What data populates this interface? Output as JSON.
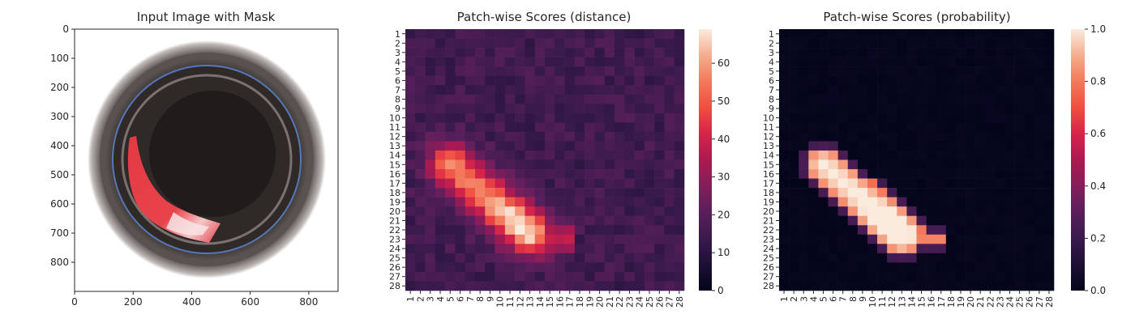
{
  "chart_data": [
    {
      "type": "image",
      "title": "Input Image with Mask",
      "xlabel": "",
      "ylabel": "",
      "xlim": [
        0,
        900
      ],
      "ylim": [
        900,
        0
      ],
      "xticks": [
        0,
        200,
        400,
        600,
        800
      ],
      "yticks": [
        0,
        100,
        200,
        300,
        400,
        500,
        600,
        700,
        800
      ],
      "content": "photograph of a dark circular container with a red mask overlay on the lower-left rim",
      "mask_color": "#e8323c"
    },
    {
      "type": "heatmap",
      "title": "Patch-wise Scores (distance)",
      "xlabel": "",
      "ylabel": "",
      "x_ticklabels": [
        "1",
        "2",
        "3",
        "4",
        "5",
        "6",
        "7",
        "8",
        "9",
        "10",
        "11",
        "12",
        "13",
        "14",
        "15",
        "16",
        "17",
        "18",
        "19",
        "20",
        "21",
        "22",
        "23",
        "24",
        "25",
        "26",
        "27",
        "28"
      ],
      "y_ticklabels": [
        "1",
        "2",
        "3",
        "4",
        "5",
        "6",
        "7",
        "8",
        "9",
        "10",
        "11",
        "12",
        "13",
        "14",
        "15",
        "16",
        "17",
        "18",
        "19",
        "20",
        "21",
        "22",
        "23",
        "24",
        "25",
        "26",
        "27",
        "28"
      ],
      "colorbar": {
        "min": 0,
        "max": 69,
        "ticks": [
          0,
          10,
          20,
          30,
          40,
          50,
          60
        ],
        "cmap": "rocket"
      },
      "pattern": "diagonal band of high values from row 14 col 5 to row 23 col 12, peak about 68 near row 22 col 12; background about 15-25"
    },
    {
      "type": "heatmap",
      "title": "Patch-wise Scores (probability)",
      "xlabel": "",
      "ylabel": "",
      "x_ticklabels": [
        "1",
        "2",
        "3",
        "4",
        "5",
        "6",
        "7",
        "8",
        "9",
        "10",
        "11",
        "12",
        "13",
        "14",
        "15",
        "16",
        "17",
        "18",
        "19",
        "20",
        "21",
        "22",
        "23",
        "24",
        "25",
        "26",
        "27",
        "28"
      ],
      "y_ticklabels": [
        "1",
        "2",
        "3",
        "4",
        "5",
        "6",
        "7",
        "8",
        "9",
        "10",
        "11",
        "12",
        "13",
        "14",
        "15",
        "16",
        "17",
        "18",
        "19",
        "20",
        "21",
        "22",
        "23",
        "24",
        "25",
        "26",
        "27",
        "28"
      ],
      "colorbar": {
        "min": 0,
        "max": 1,
        "ticks": [
          0.0,
          0.2,
          0.4,
          0.6,
          0.8,
          1.0
        ],
        "tick_labels": [
          "0.0",
          "0.2",
          "0.4",
          "0.6",
          "0.8",
          "1.0"
        ],
        "cmap": "rocket"
      },
      "pattern": "same diagonal band, values near 0.8-1.0 inside band, near 0 elsewhere"
    }
  ]
}
